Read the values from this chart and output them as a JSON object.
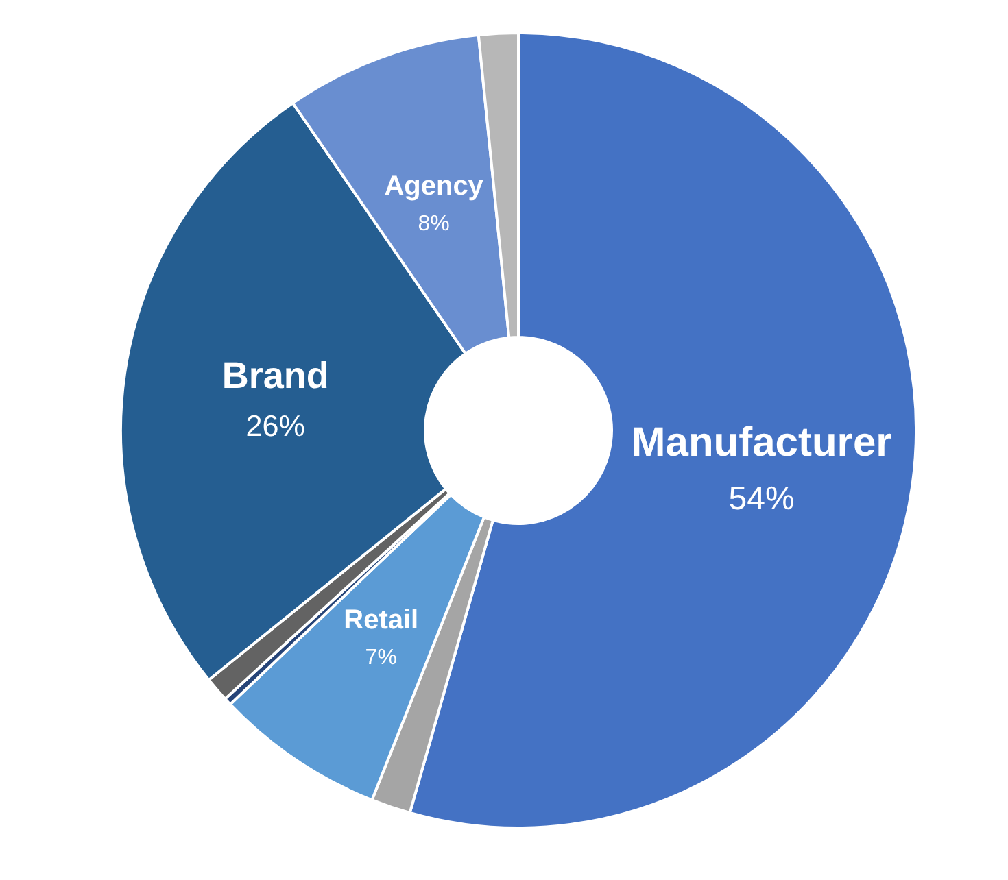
{
  "chart_data": {
    "type": "donut",
    "categories": [
      "Manufacturer",
      null,
      "Retail",
      null,
      null,
      "Brand",
      "Agency",
      null
    ],
    "values": [
      54.4,
      1.6,
      6.9,
      0.3,
      1.0,
      26.2,
      8.0,
      1.6
    ],
    "value_labels": [
      "54%",
      null,
      "7%",
      null,
      null,
      "26%",
      "8%",
      null
    ],
    "colors": [
      "#4472c4",
      "#a5a5a5",
      "#5b9bd5",
      "#264478",
      "#636363",
      "#255e91",
      "#698ed0",
      "#b7b7b7"
    ],
    "legend": false
  }
}
